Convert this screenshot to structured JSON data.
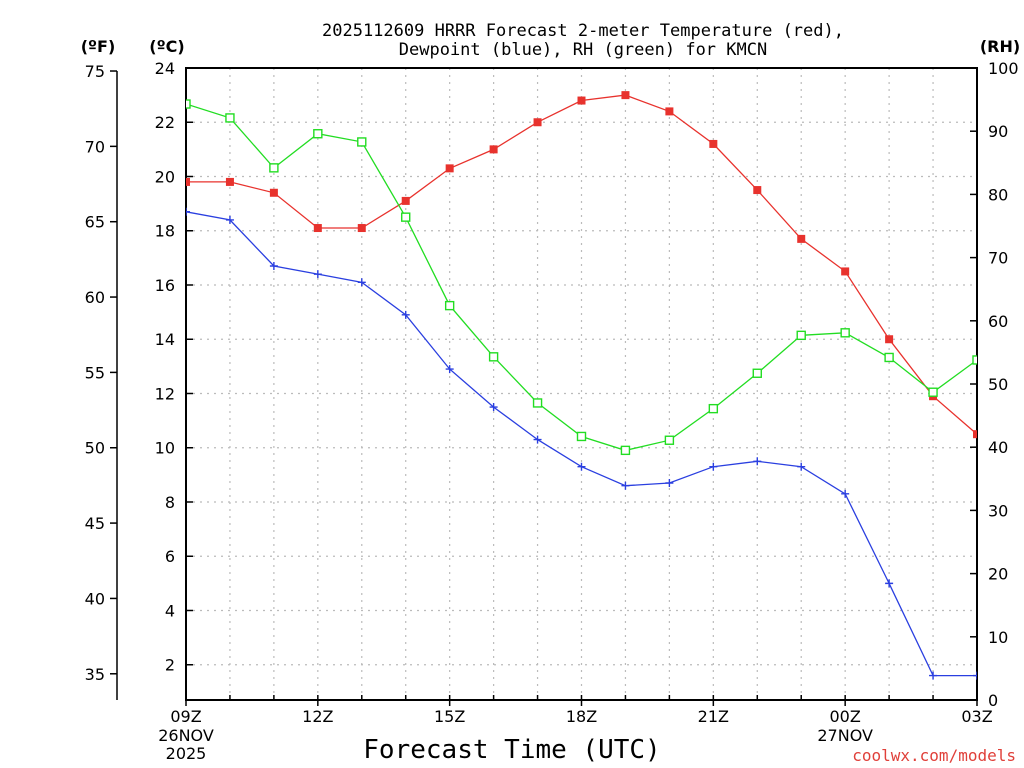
{
  "chart_data": {
    "type": "line",
    "title_line1": "2025112609 HRRR Forecast 2-meter Temperature (red),",
    "title_line2": "Dewpoint (blue), RH (green) for KMCN",
    "units": {
      "fahrenheit": "(ºF)",
      "celsius": "(ºC)",
      "rh": "(RH)"
    },
    "xlabel": "Forecast Time (UTC)",
    "credit": "coolwx.com/models",
    "x": [
      0,
      1,
      2,
      3,
      4,
      5,
      6,
      7,
      8,
      9,
      10,
      11,
      12,
      13,
      14,
      15,
      16,
      17,
      18
    ],
    "xlim": [
      0,
      18
    ],
    "x_ticks": [
      {
        "x": 0,
        "label": "09Z",
        "date1": "26NOV",
        "date2": "2025"
      },
      {
        "x": 3,
        "label": "12Z"
      },
      {
        "x": 6,
        "label": "15Z"
      },
      {
        "x": 9,
        "label": "18Z"
      },
      {
        "x": 12,
        "label": "21Z"
      },
      {
        "x": 15,
        "label": "00Z",
        "date1": "27NOV"
      },
      {
        "x": 18,
        "label": "03Z"
      }
    ],
    "celsius_axis": {
      "ylim": [
        0.7,
        24
      ],
      "ticks": [
        2,
        4,
        6,
        8,
        10,
        12,
        14,
        16,
        18,
        20,
        22,
        24
      ]
    },
    "fahrenheit_axis": {
      "ticks": [
        35,
        40,
        45,
        50,
        55,
        60,
        65,
        70,
        75
      ]
    },
    "rh_axis": {
      "ylim": [
        0,
        100
      ],
      "ticks": [
        0,
        10,
        20,
        30,
        40,
        50,
        60,
        70,
        80,
        90,
        100
      ]
    },
    "series": [
      {
        "name": "Temperature",
        "axis": "celsius",
        "color": "#e8322d",
        "marker": "filled-square",
        "values": [
          19.8,
          19.8,
          19.4,
          18.1,
          18.1,
          19.1,
          20.3,
          21.0,
          22.0,
          22.8,
          23.0,
          22.4,
          21.2,
          19.5,
          17.7,
          16.5,
          14.0,
          11.9,
          10.5
        ]
      },
      {
        "name": "Dewpoint",
        "axis": "celsius",
        "color": "#2a3fe0",
        "marker": "plus",
        "values": [
          18.7,
          18.4,
          16.7,
          16.4,
          16.1,
          14.9,
          12.9,
          11.5,
          10.3,
          9.3,
          8.6,
          8.7,
          9.3,
          9.5,
          9.3,
          8.3,
          5.0,
          1.6,
          1.6
        ]
      },
      {
        "name": "RH",
        "axis": "rh",
        "color": "#22dd22",
        "marker": "open-square",
        "values": [
          94.3,
          92.1,
          84.2,
          89.6,
          88.3,
          76.4,
          62.4,
          54.3,
          47.0,
          41.7,
          39.5,
          41.1,
          46.1,
          51.7,
          57.7,
          58.1,
          54.2,
          48.7,
          53.8
        ]
      }
    ]
  }
}
